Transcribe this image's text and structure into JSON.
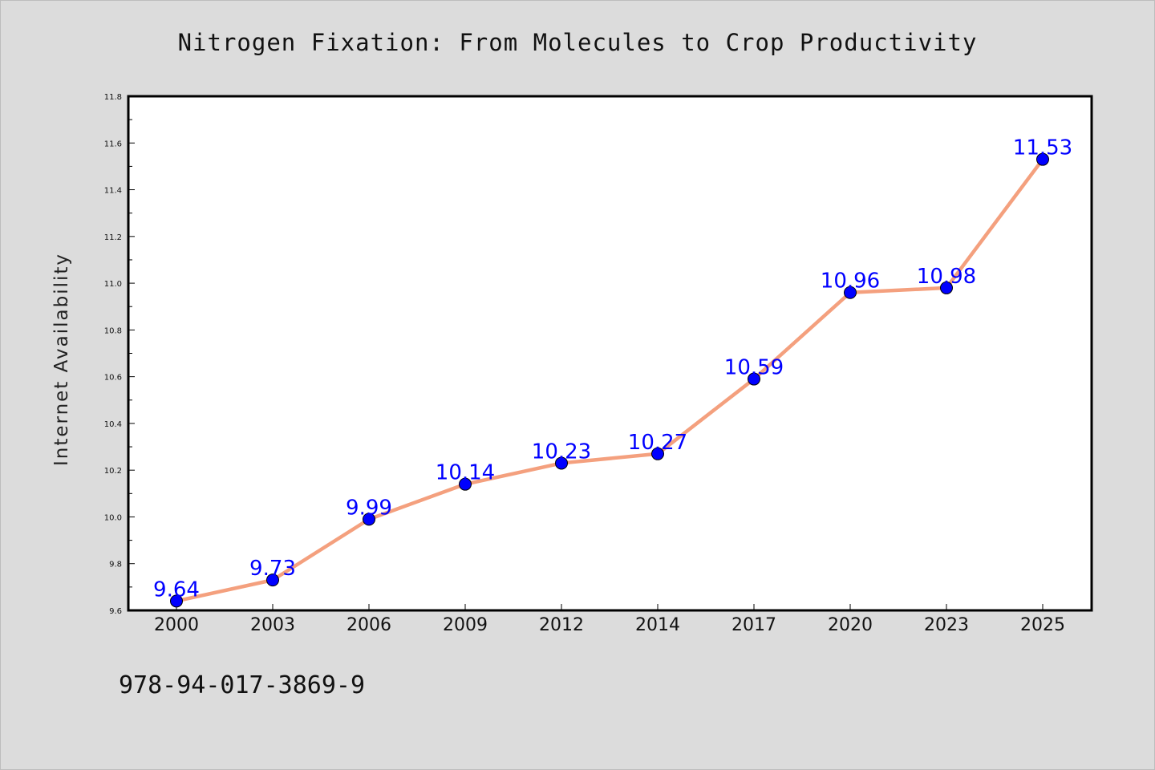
{
  "chart_data": {
    "type": "line",
    "title": "Nitrogen Fixation: From Molecules to Crop Productivity",
    "xlabel": "",
    "ylabel": "Internet Availability",
    "categories": [
      "2000",
      "2003",
      "2006",
      "2009",
      "2012",
      "2014",
      "2017",
      "2020",
      "2023",
      "2025"
    ],
    "values": [
      9.64,
      9.73,
      9.99,
      10.14,
      10.23,
      10.27,
      10.59,
      10.96,
      10.98,
      11.53
    ],
    "data_labels": [
      "9.64",
      "9.73",
      "9.99",
      "10.14",
      "10.23",
      "10.27",
      "10.59",
      "10.96",
      "10.98",
      "11.53"
    ],
    "ylim": [
      9.6,
      11.8
    ],
    "yticks": [
      "9.6",
      "9.8",
      "10.0",
      "10.2",
      "10.4",
      "10.6",
      "10.8",
      "11.0",
      "11.2",
      "11.4",
      "11.6",
      "11.8"
    ],
    "grid": false,
    "colors": {
      "line": "#f4a07e",
      "marker": "#0000ff",
      "data_label": "#0000ff"
    }
  },
  "footer": {
    "isbn": "978-94-017-3869-9"
  }
}
